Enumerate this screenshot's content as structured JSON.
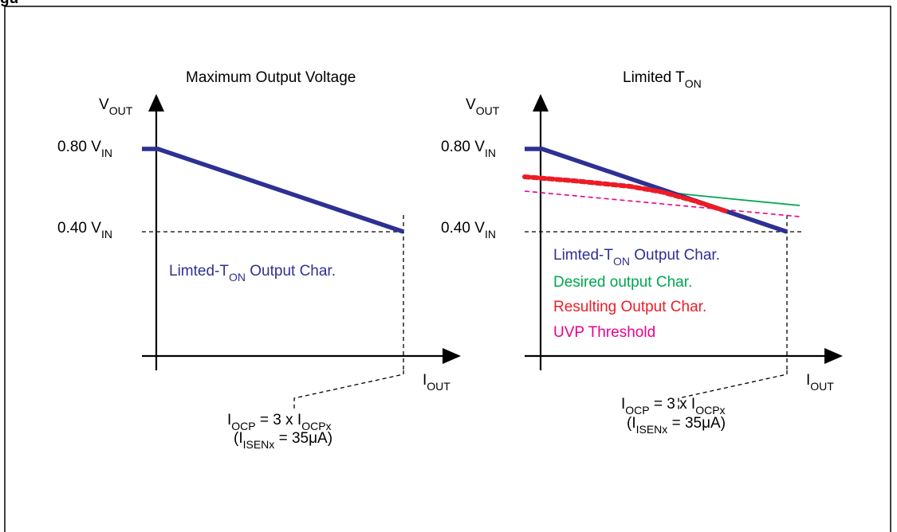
{
  "header": {
    "partial_text": "gu"
  },
  "colors": {
    "frame": "#000000",
    "limited_ton": "#2e3192",
    "desired": "#00a651",
    "resulting": "#ed1c24",
    "uvp": "#ec008c"
  },
  "left_panel": {
    "title": "Maximum Output Voltage",
    "y_axis": {
      "main": "V",
      "sub": "OUT"
    },
    "x_axis": {
      "main": "I",
      "sub": "OUT"
    },
    "tick_high": {
      "main": "0.80 V",
      "sub": "IN"
    },
    "tick_low": {
      "main": "0.40 V",
      "sub": "IN"
    },
    "legend": [
      {
        "pre": "Limted-T",
        "sub": "ON",
        "post": " Output Char.",
        "color": "#2e3192"
      }
    ],
    "ocp_line1": {
      "a": "I",
      "a_sub": "OCP",
      "b": " = 3 x I",
      "b_sub": "OCPx"
    },
    "ocp_line2": {
      "a": "(I",
      "a_sub": "ISENx",
      "b": " = 35μA)"
    }
  },
  "right_panel": {
    "title": {
      "main": "Limited T",
      "sub": "ON"
    },
    "y_axis": {
      "main": "V",
      "sub": "OUT"
    },
    "x_axis": {
      "main": "I",
      "sub": "OUT"
    },
    "tick_high": {
      "main": "0.80 V",
      "sub": "IN"
    },
    "tick_low": {
      "main": "0.40 V",
      "sub": "IN"
    },
    "legend": [
      {
        "pre": "Limted-T",
        "sub": "ON",
        "post": " Output Char.",
        "color": "#2e3192"
      },
      {
        "pre": "Desired output Char.",
        "sub": "",
        "post": "",
        "color": "#00a651"
      },
      {
        "pre": "Resulting Output Char.",
        "sub": "",
        "post": "",
        "color": "#ed1c24"
      },
      {
        "pre": "UVP Threshold",
        "sub": "",
        "post": "",
        "color": "#ec008c"
      }
    ],
    "ocp_line1": {
      "a": "I",
      "a_sub": "OCP",
      "b": " = 3 x I",
      "b_sub": "OCPx"
    },
    "ocp_line2": {
      "a": "(I",
      "a_sub": "ISENx",
      "b": " = 35μA)"
    }
  }
}
